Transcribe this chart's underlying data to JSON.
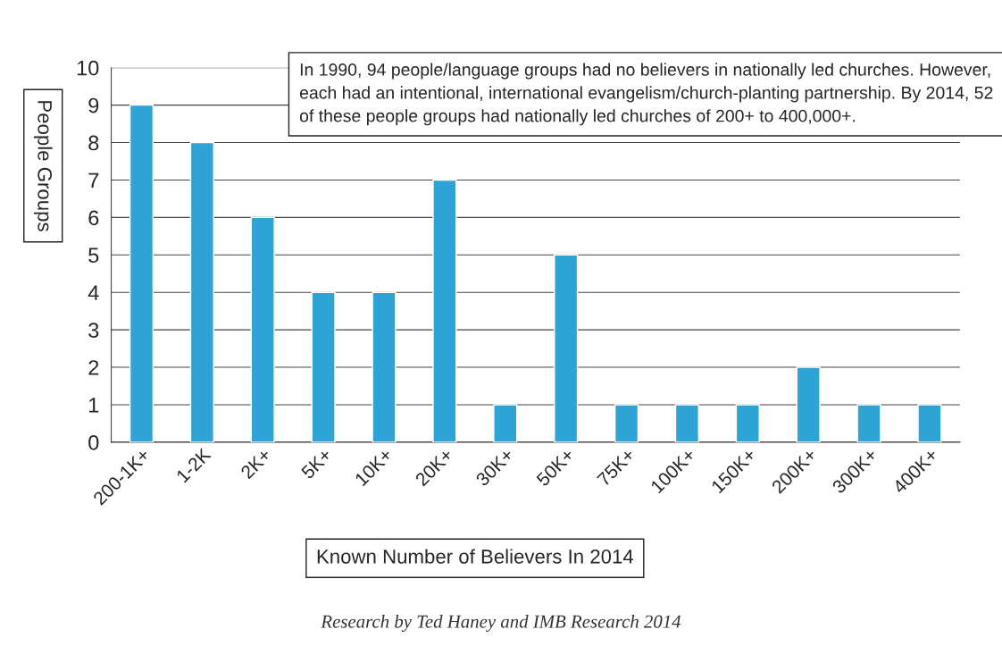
{
  "chart_data": {
    "type": "bar",
    "categories": [
      "200-1K+",
      "1-2K",
      "2K+",
      "5K+",
      "10K+",
      "20K+",
      "30K+",
      "50K+",
      "75K+",
      "100K+",
      "150K+",
      "200K+",
      "300K+",
      "400K+"
    ],
    "values": [
      9,
      8,
      6,
      4,
      4,
      7,
      1,
      5,
      1,
      1,
      1,
      2,
      1,
      1
    ],
    "color": "#2ea3d6",
    "xlabel": "Known Number of Believers In 2014",
    "ylabel": "People Groups",
    "ylim": [
      0,
      10
    ],
    "yticks": [
      0,
      1,
      2,
      3,
      4,
      5,
      6,
      7,
      8,
      9,
      10
    ],
    "grid": "y",
    "annotations": [
      "In 1990, 94 people/language groups had no believers in nationally led churches. However, each had an intentional, international evangelism/church-planting partnership. By 2014, 52 of these people groups had nationally led churches of 200+ to 400,000+.",
      "Research by Ted Haney and IMB Research 2014"
    ]
  }
}
